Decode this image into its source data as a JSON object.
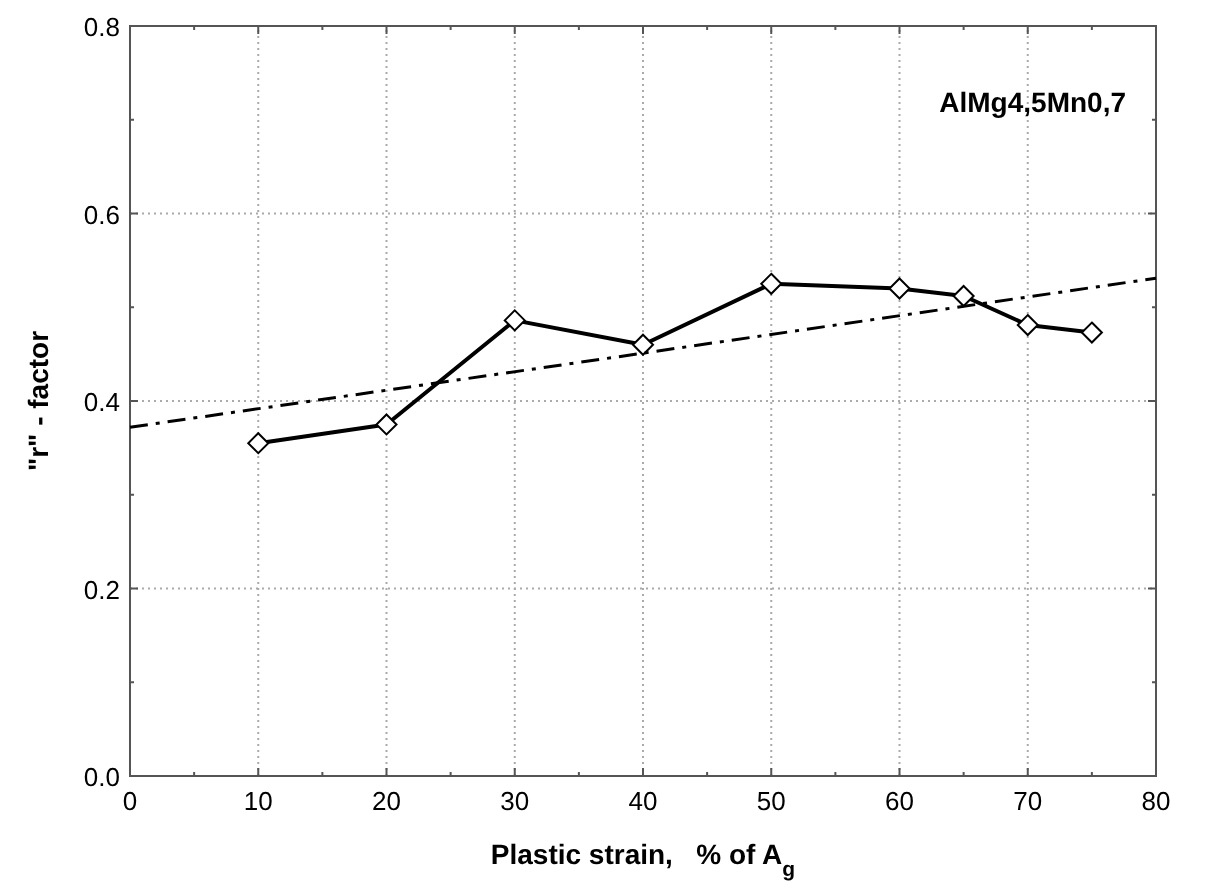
{
  "chart_data": {
    "type": "line",
    "xlabel": "Plastic strain,   % of A$_{g}$",
    "ylabel": "\"r\" - factor",
    "annotations": [
      "AlMg4,5Mn0,7"
    ],
    "x": [
      10,
      20,
      30,
      40,
      50,
      60,
      65,
      70,
      75
    ],
    "series": [
      {
        "color": "#000000",
        "marker": "diamond",
        "line_style": "solid",
        "values": [
          0.355,
          0.375,
          0.486,
          0.46,
          0.525,
          0.52,
          0.512,
          0.481,
          0.473
        ]
      },
      {
        "color": "#000000",
        "marker": "none",
        "line_style": "dashed",
        "x": [
          0,
          40,
          80
        ],
        "values": [
          0.372,
          0.451,
          0.531
        ]
      }
    ],
    "xlim": [
      0,
      80
    ],
    "ylim": [
      0,
      0.8
    ],
    "xticks": [
      0,
      {
        "value": 5,
        "label": null
      },
      10,
      {
        "value": 15,
        "label": null
      },
      20,
      {
        "value": 25,
        "label": null
      },
      30,
      {
        "value": 35,
        "label": null
      },
      40,
      {
        "value": 45,
        "label": null
      },
      50,
      {
        "value": 55,
        "label": null
      },
      60,
      {
        "value": 65,
        "label": null
      },
      70,
      {
        "value": 75,
        "label": null
      },
      80
    ],
    "yticks": [
      {
        "value": 0,
        "label": "0.0"
      },
      {
        "value": 0.1,
        "label": null
      },
      {
        "value": 0.2,
        "label": "0.2"
      },
      {
        "value": 0.3,
        "label": null
      },
      {
        "value": 0.4,
        "label": "0.4"
      },
      {
        "value": 0.5,
        "label": null
      },
      {
        "value": 0.6,
        "label": "0.6"
      },
      {
        "value": 0.7,
        "label": null
      },
      {
        "value": 0.8,
        "label": "0.8"
      }
    ],
    "grid": true
  }
}
